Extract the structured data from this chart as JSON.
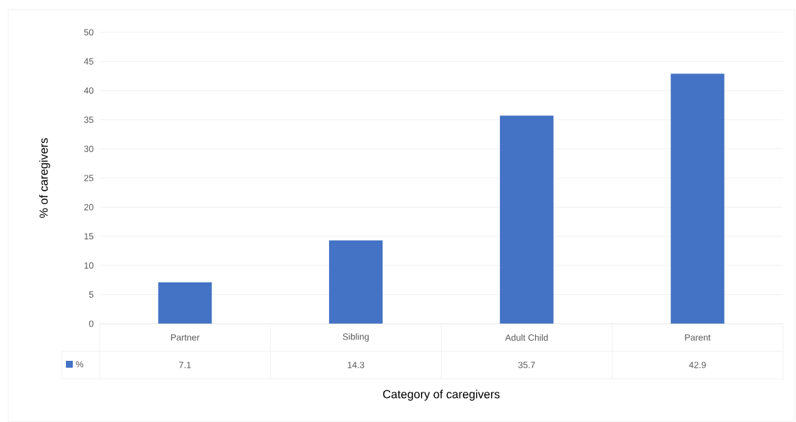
{
  "chart_data": {
    "type": "bar",
    "xlabel": "Category of caregivers",
    "ylabel": "% of caregivers",
    "categories": [
      "Partner",
      "Sibling",
      "Adult Child",
      "Parent"
    ],
    "series": [
      {
        "name": "%",
        "color": "#4472c4",
        "values": [
          7.1,
          14.3,
          35.7,
          42.9
        ]
      }
    ],
    "ylim": [
      0,
      50
    ],
    "yticks": [
      0,
      5,
      10,
      15,
      20,
      25,
      30,
      35,
      40,
      45,
      50
    ],
    "grid": "y",
    "data_labels": true,
    "legend": "bottom"
  }
}
